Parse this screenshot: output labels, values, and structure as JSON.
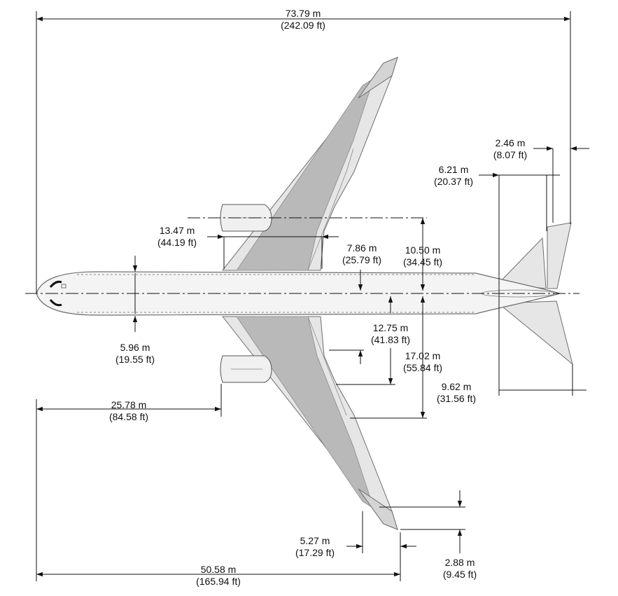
{
  "colors": {
    "line": "#111111",
    "fuselage_fill": "#f4f4f4",
    "wing_fill": "#e6e6e6",
    "wing_dark": "#b9b9b9",
    "outline": "#6e6e6e"
  },
  "dimensions": {
    "overall_length": {
      "m": "73.79 m",
      "ft": "(242.09 ft)"
    },
    "winglet_tip": {
      "m": "2.46 m",
      "ft": "(8.07 ft)"
    },
    "tail_offset": {
      "m": "6.21 m",
      "ft": "(20.37 ft)"
    },
    "wing_root_chord": {
      "m": "13.47 m",
      "ft": "(44.19 ft)"
    },
    "root_span_a": {
      "m": "7.86 m",
      "ft": "(25.79 ft)"
    },
    "engine_span": {
      "m": "10.50 m",
      "ft": "(34.45 ft)"
    },
    "root_span_b": {
      "m": "12.75 m",
      "ft": "(41.83 ft)"
    },
    "flap_span": {
      "m": "17.02 m",
      "ft": "(55.84 ft)"
    },
    "fuselage_width": {
      "m": "5.96 m",
      "ft": "(19.55 ft)"
    },
    "nose_to_engine": {
      "m": "25.78 m",
      "ft": "(84.58 ft)"
    },
    "stab_half_span": {
      "m": "9.62 m",
      "ft": "(31.56 ft)"
    },
    "wingtip_chord": {
      "m": "5.27 m",
      "ft": "(17.29 ft)"
    },
    "wingtip_height": {
      "m": "2.88 m",
      "ft": "(9.45 ft)"
    },
    "nose_to_wingtip": {
      "m": "50.58 m",
      "ft": "(165.94 ft)"
    }
  }
}
